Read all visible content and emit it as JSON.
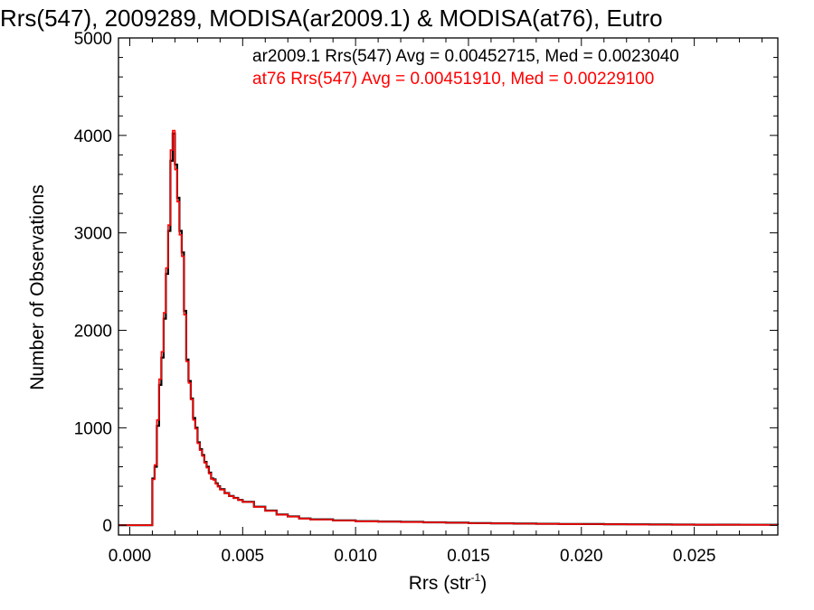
{
  "chart_data": {
    "type": "line",
    "style": "histogram-step",
    "title": "Rrs(547), 2009289, MODISA(ar2009.1) & MODISA(at76), Eutro",
    "xlabel_main": "Rrs (str",
    "xlabel_sup": "-1",
    "xlabel_close": ")",
    "ylabel": "Number of Observations",
    "xlim": [
      -0.0005,
      0.0287
    ],
    "ylim": [
      -100,
      5000
    ],
    "x_ticks": [
      {
        "value": 0.0,
        "label": "0.000"
      },
      {
        "value": 0.005,
        "label": "0.005"
      },
      {
        "value": 0.01,
        "label": "0.010"
      },
      {
        "value": 0.015,
        "label": "0.015"
      },
      {
        "value": 0.02,
        "label": "0.020"
      },
      {
        "value": 0.025,
        "label": "0.025"
      }
    ],
    "y_ticks": [
      {
        "value": 0,
        "label": "0"
      },
      {
        "value": 1000,
        "label": "1000"
      },
      {
        "value": 2000,
        "label": "2000"
      },
      {
        "value": 3000,
        "label": "3000"
      },
      {
        "value": 4000,
        "label": "4000"
      },
      {
        "value": 5000,
        "label": "5000"
      }
    ],
    "legend_position": "top-right",
    "series": [
      {
        "name": "ar2009.1 Rrs(547) Avg = 0.00452715, Med = 0.0023040",
        "color": "#000000",
        "x": [
          -0.0005,
          0.0,
          0.0005,
          0.001,
          0.0011,
          0.0012,
          0.0013,
          0.0014,
          0.0015,
          0.0016,
          0.0017,
          0.0018,
          0.0019,
          0.002,
          0.0021,
          0.0022,
          0.0023,
          0.0024,
          0.0025,
          0.0026,
          0.0027,
          0.0028,
          0.0029,
          0.003,
          0.0031,
          0.0032,
          0.0033,
          0.0034,
          0.0035,
          0.0036,
          0.0037,
          0.0038,
          0.0039,
          0.004,
          0.0042,
          0.0044,
          0.0046,
          0.0048,
          0.005,
          0.0055,
          0.006,
          0.0065,
          0.007,
          0.0075,
          0.008,
          0.009,
          0.01,
          0.011,
          0.012,
          0.013,
          0.014,
          0.015,
          0.016,
          0.017,
          0.018,
          0.019,
          0.02,
          0.021,
          0.022,
          0.023,
          0.024,
          0.025,
          0.026,
          0.027,
          0.028,
          0.0287
        ],
        "values": [
          0,
          0,
          0,
          480,
          600,
          1020,
          1440,
          1720,
          2120,
          2580,
          3020,
          3740,
          4020,
          3700,
          3360,
          3020,
          2800,
          2200,
          1700,
          1480,
          1300,
          1100,
          1000,
          850,
          780,
          720,
          650,
          600,
          540,
          480,
          470,
          430,
          400,
          370,
          330,
          300,
          280,
          260,
          240,
          190,
          150,
          110,
          90,
          70,
          60,
          50,
          42,
          38,
          34,
          30,
          26,
          22,
          20,
          17,
          15,
          13,
          12,
          10,
          9,
          8,
          7,
          6,
          6,
          5,
          5,
          4
        ]
      },
      {
        "name": "at76 Rrs(547) Avg = 0.00451910, Med = 0.00229100",
        "color": "#ff0000",
        "x": [
          -0.0005,
          0.0,
          0.0005,
          0.001,
          0.0011,
          0.0012,
          0.0013,
          0.0014,
          0.0015,
          0.0016,
          0.0017,
          0.0018,
          0.0019,
          0.002,
          0.0021,
          0.0022,
          0.0023,
          0.0024,
          0.0025,
          0.0026,
          0.0027,
          0.0028,
          0.0029,
          0.003,
          0.0031,
          0.0032,
          0.0033,
          0.0034,
          0.0035,
          0.0036,
          0.0037,
          0.0038,
          0.0039,
          0.004,
          0.0042,
          0.0044,
          0.0046,
          0.0048,
          0.005,
          0.0055,
          0.006,
          0.0065,
          0.007,
          0.0075,
          0.008,
          0.009,
          0.01,
          0.011,
          0.012,
          0.013,
          0.014,
          0.015,
          0.016,
          0.017,
          0.018,
          0.019,
          0.02,
          0.021,
          0.022,
          0.023,
          0.024,
          0.025,
          0.026,
          0.027,
          0.028,
          0.0287
        ],
        "values": [
          0,
          0,
          0,
          470,
          620,
          1080,
          1500,
          1780,
          2180,
          2640,
          3080,
          3850,
          4050,
          3650,
          3320,
          2980,
          2760,
          2160,
          1680,
          1460,
          1290,
          1080,
          990,
          840,
          770,
          710,
          640,
          590,
          530,
          475,
          465,
          425,
          395,
          365,
          328,
          298,
          278,
          258,
          238,
          188,
          148,
          108,
          88,
          68,
          58,
          48,
          40,
          36,
          33,
          29,
          25,
          21,
          19,
          16,
          14,
          12,
          11,
          9,
          8,
          7,
          6,
          6,
          5,
          5,
          4,
          4
        ]
      }
    ]
  }
}
